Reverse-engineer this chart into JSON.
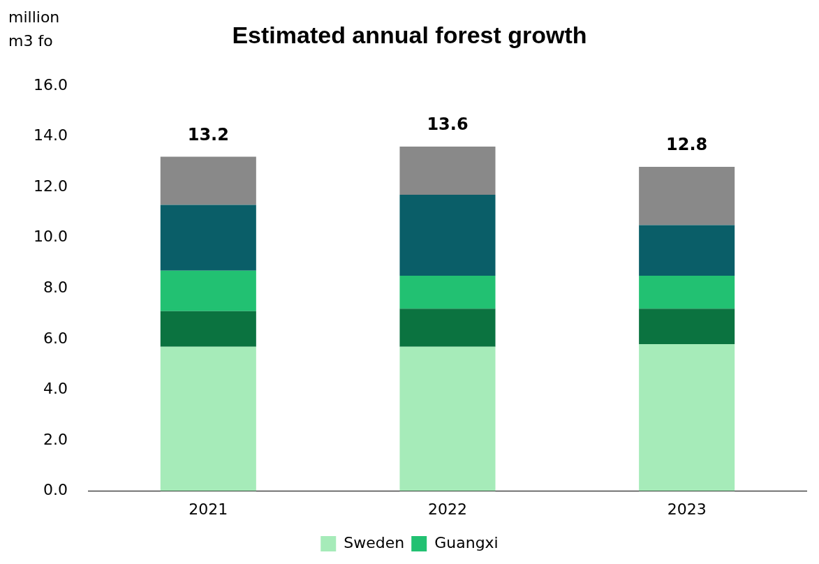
{
  "chart_data": {
    "type": "bar",
    "title": "Estimated annual forest growth",
    "ylabel": "million m3 fo",
    "categories": [
      "2021",
      "2022",
      "2023"
    ],
    "stacked": true,
    "series": [
      {
        "name": "Sweden",
        "color": "#a6ebb9",
        "values": [
          5.7,
          5.7,
          5.8
        ]
      },
      {
        "color": "#0b7340",
        "values": [
          1.4,
          1.5,
          1.4
        ]
      },
      {
        "name": "Guangxi",
        "color": "#22c172",
        "values": [
          1.6,
          1.3,
          1.3
        ]
      },
      {
        "color": "#0a5e68",
        "values": [
          2.6,
          3.2,
          2.0
        ]
      },
      {
        "color": "#898989",
        "values": [
          1.9,
          1.9,
          2.3
        ]
      }
    ],
    "ylim": [
      0,
      16
    ],
    "yticks": [
      {
        "value": 0,
        "label": "0.0"
      },
      {
        "value": 2,
        "label": "2.0"
      },
      {
        "value": 4,
        "label": "4.0"
      },
      {
        "value": 6,
        "label": "6.0"
      },
      {
        "value": 8,
        "label": "8.0"
      },
      {
        "value": 10,
        "label": "10.0"
      },
      {
        "value": 12,
        "label": "12.0"
      },
      {
        "value": 14,
        "label": "14.0"
      },
      {
        "value": 16,
        "label": "16.0"
      }
    ],
    "totals": [
      "13.2",
      "13.6",
      "12.8"
    ],
    "grid": false,
    "legend": "bottom"
  }
}
